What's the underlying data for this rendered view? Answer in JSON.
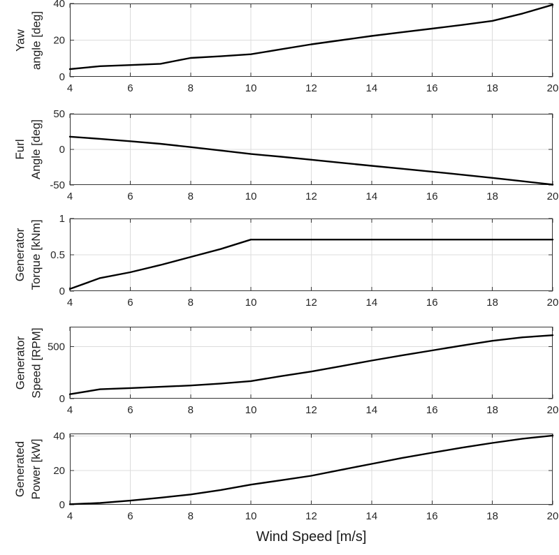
{
  "xlabel": "Wind Speed [m/s]",
  "colors": {
    "line": "#000000",
    "axis": "#333333",
    "grid": "#dcdcdc",
    "tick_text": "#262626",
    "label_text": "#1c1c1c",
    "background": "#ffffff"
  },
  "chart_data": [
    {
      "type": "line",
      "title": "",
      "ylabel_lines": [
        "Yaw",
        "angle [deg]"
      ],
      "x": [
        4,
        5,
        6,
        7,
        8,
        9,
        10,
        11,
        12,
        13,
        14,
        15,
        16,
        17,
        18,
        19,
        20
      ],
      "y": [
        4.2,
        5.8,
        6.4,
        7.1,
        10.3,
        11.2,
        12.3,
        15.0,
        17.7,
        20.0,
        22.3,
        24.3,
        26.3,
        28.3,
        30.5,
        34.5,
        39.3
      ],
      "xlim": [
        4,
        20
      ],
      "ylim": [
        0,
        40
      ],
      "xticks": [
        4,
        6,
        8,
        10,
        12,
        14,
        16,
        18,
        20
      ],
      "yticks": [
        0,
        20,
        40
      ],
      "grid": true,
      "legend": null
    },
    {
      "type": "line",
      "title": "",
      "ylabel_lines": [
        "Furl",
        "Angle [deg]"
      ],
      "x": [
        4,
        5,
        6,
        7,
        8,
        9,
        10,
        11,
        12,
        13,
        14,
        15,
        16,
        17,
        18,
        19,
        20
      ],
      "y": [
        17.8,
        14.8,
        11.5,
        7.8,
        3.2,
        -1.6,
        -6.5,
        -10.3,
        -14.5,
        -18.8,
        -23.0,
        -27.2,
        -31.3,
        -35.6,
        -40.0,
        -44.7,
        -49.5
      ],
      "xlim": [
        4,
        20
      ],
      "ylim": [
        -50,
        50
      ],
      "xticks": [
        4,
        6,
        8,
        10,
        12,
        14,
        16,
        18,
        20
      ],
      "yticks": [
        -50,
        0,
        50
      ],
      "grid": true,
      "legend": null
    },
    {
      "type": "line",
      "title": "",
      "ylabel_lines": [
        "Generator",
        "Torque [kNm]"
      ],
      "x": [
        4,
        5,
        6,
        7,
        8,
        9,
        10,
        11,
        12,
        13,
        14,
        15,
        16,
        17,
        18,
        19,
        20
      ],
      "y": [
        0.03,
        0.18,
        0.26,
        0.36,
        0.47,
        0.58,
        0.71,
        0.71,
        0.71,
        0.71,
        0.71,
        0.71,
        0.71,
        0.71,
        0.71,
        0.71,
        0.71
      ],
      "xlim": [
        4,
        20
      ],
      "ylim": [
        0,
        1
      ],
      "xticks": [
        4,
        6,
        8,
        10,
        12,
        14,
        16,
        18,
        20
      ],
      "yticks": [
        0,
        0.5,
        1
      ],
      "grid": true,
      "legend": null
    },
    {
      "type": "line",
      "title": "",
      "ylabel_lines": [
        "Generator",
        "Speed [RPM]"
      ],
      "x": [
        4,
        5,
        6,
        7,
        8,
        9,
        10,
        11,
        12,
        13,
        14,
        15,
        16,
        17,
        18,
        19,
        20
      ],
      "y": [
        42,
        90,
        101,
        113,
        126,
        145,
        168,
        216,
        260,
        312,
        365,
        415,
        462,
        510,
        555,
        588,
        608
      ],
      "xlim": [
        4,
        20
      ],
      "ylim": [
        0,
        690
      ],
      "xticks": [
        4,
        6,
        8,
        10,
        12,
        14,
        16,
        18,
        20
      ],
      "yticks": [
        0,
        500
      ],
      "grid": true,
      "legend": null
    },
    {
      "type": "line",
      "title": "",
      "ylabel_lines": [
        "Generated",
        "Power [kW]"
      ],
      "x": [
        4,
        5,
        6,
        7,
        8,
        9,
        10,
        11,
        12,
        13,
        14,
        15,
        16,
        17,
        18,
        19,
        20
      ],
      "y": [
        0.3,
        1.0,
        2.4,
        4.1,
        6.0,
        8.6,
        11.7,
        14.3,
        16.9,
        20.4,
        23.8,
        27.2,
        30.3,
        33.3,
        36.0,
        38.5,
        40.3
      ],
      "xlim": [
        4,
        20
      ],
      "ylim": [
        0,
        41.5
      ],
      "xticks": [
        4,
        6,
        8,
        10,
        12,
        14,
        16,
        18,
        20
      ],
      "yticks": [
        0,
        20,
        40
      ],
      "grid": true,
      "legend": null
    }
  ]
}
